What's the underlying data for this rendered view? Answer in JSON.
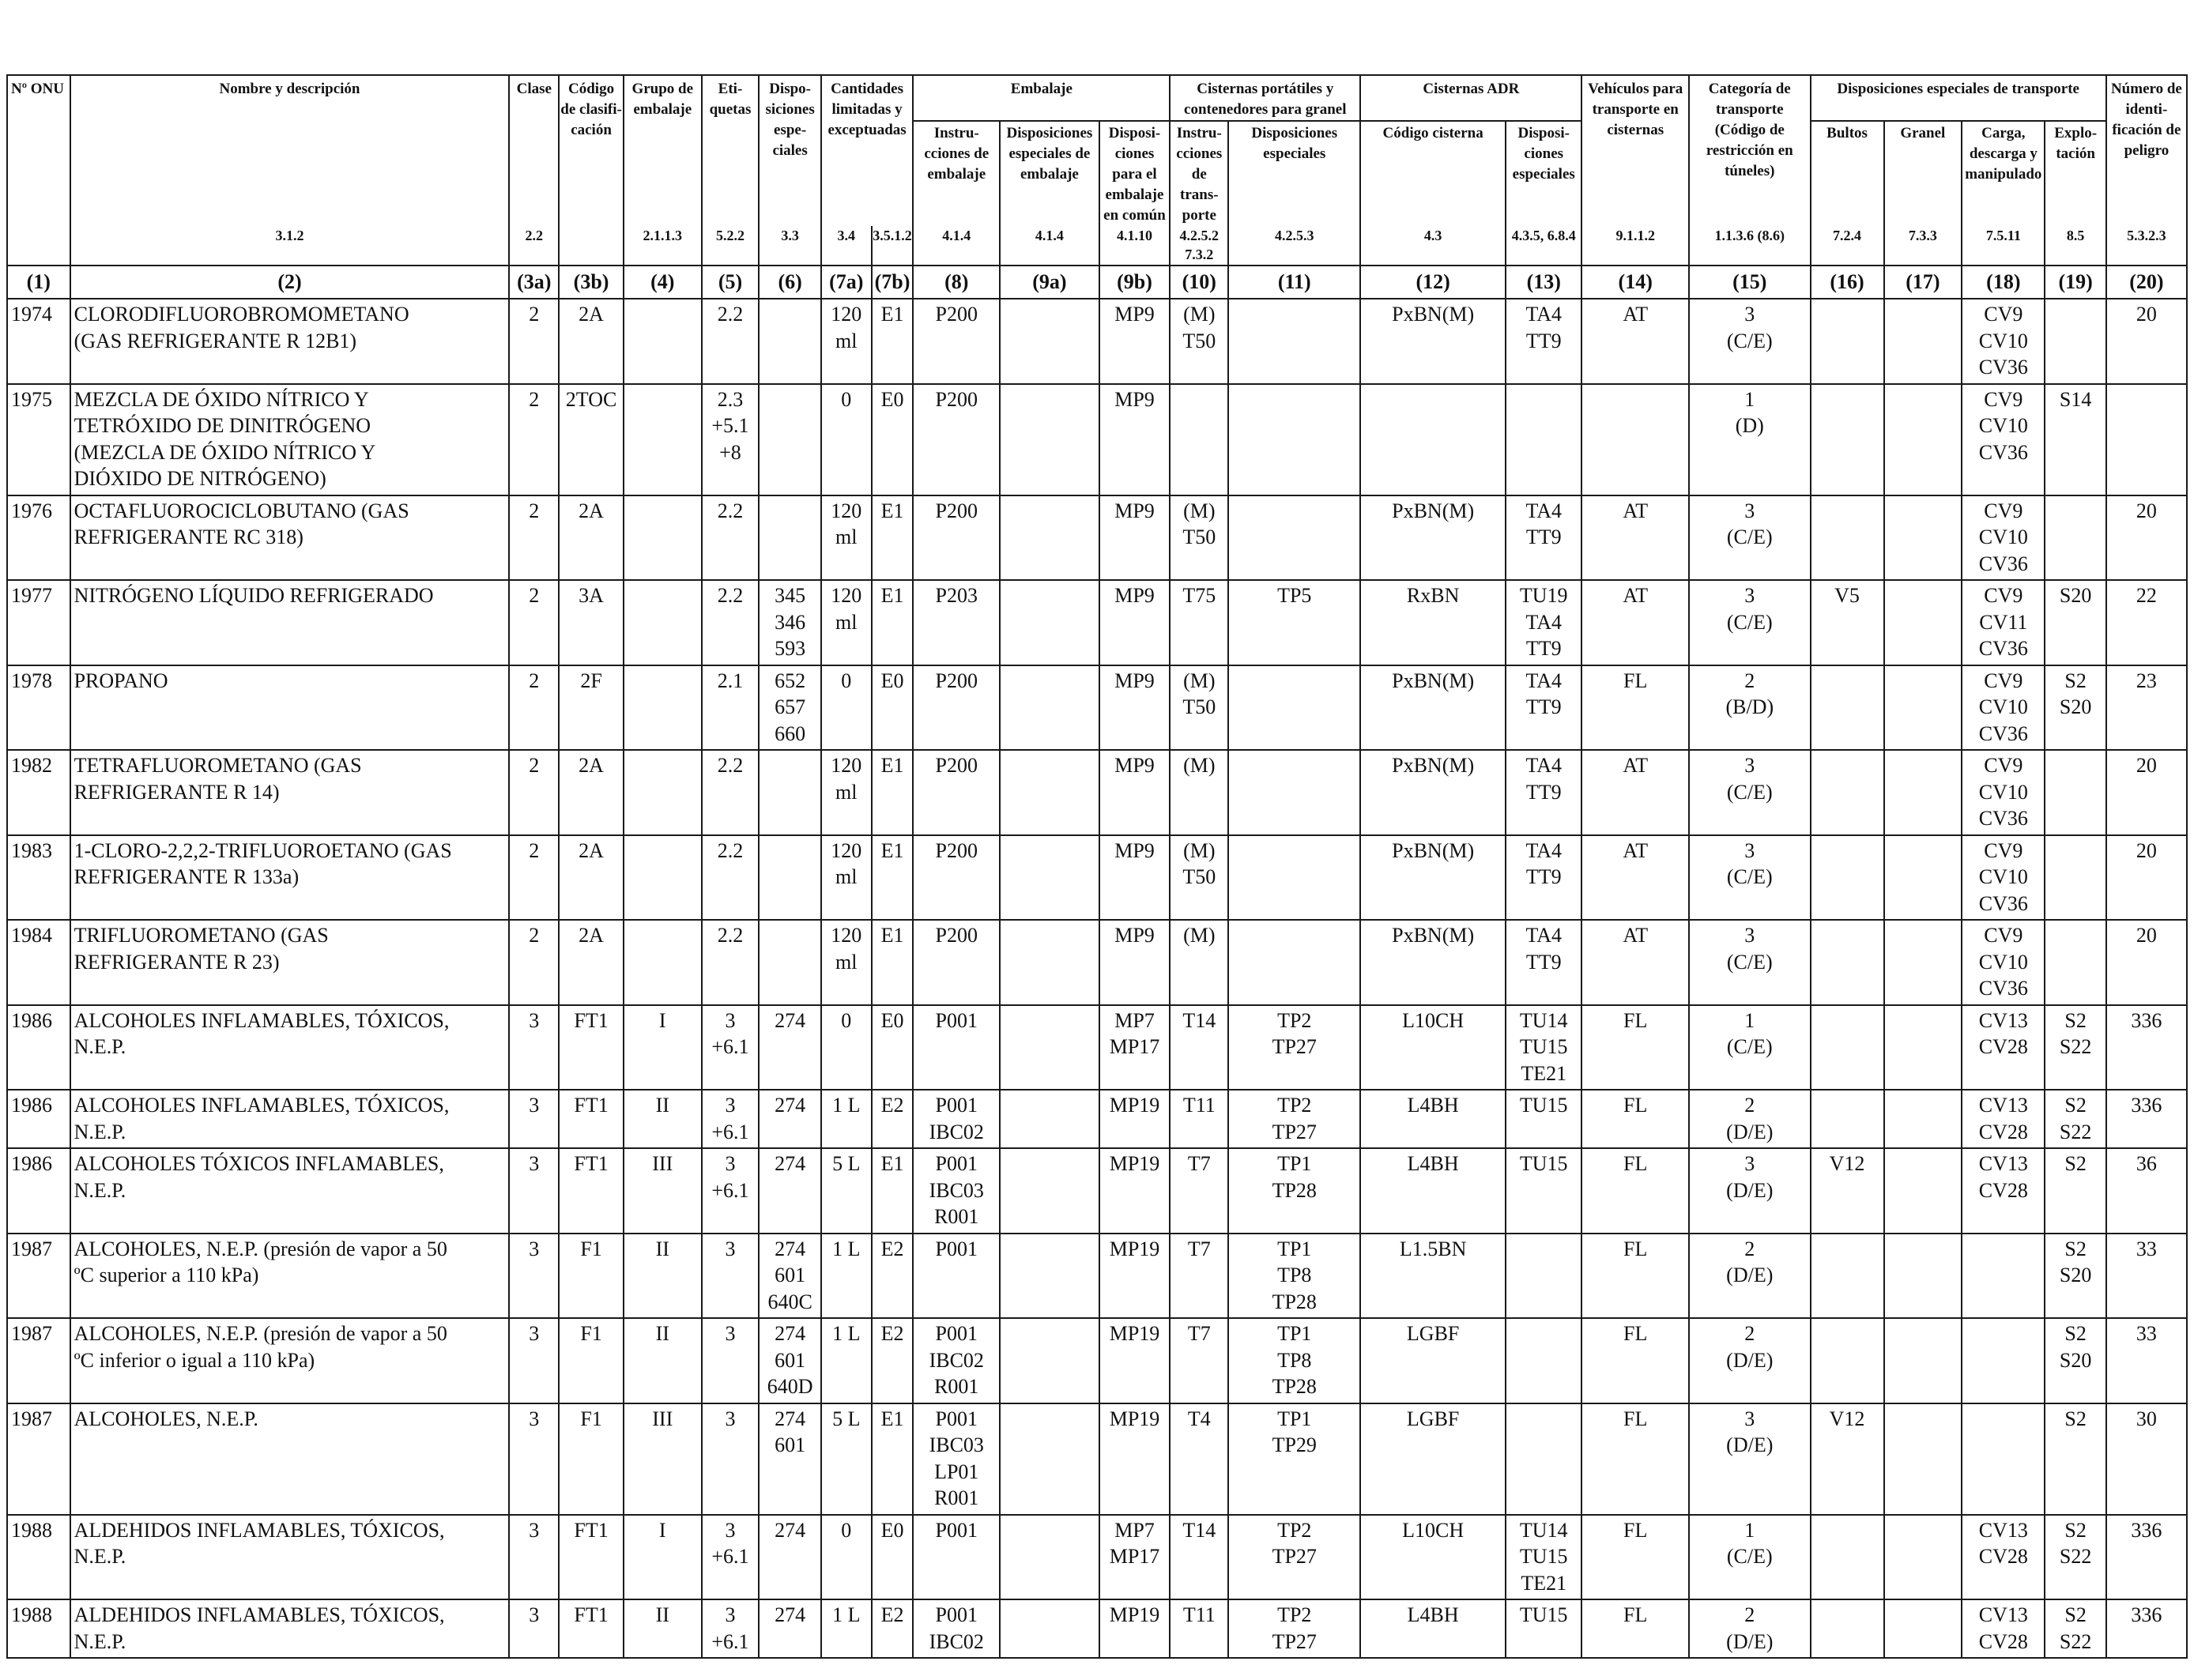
{
  "header": {
    "onu": "Nº ONU",
    "name": "Nombre y descripción",
    "clase": "Clase",
    "codigo": "Código de clasifi- cación",
    "grupo": "Grupo de embalaje",
    "etiquetas": "Eti- quetas",
    "disposiciones": "Dispo- siciones espe- ciales",
    "cantidades": "Cantidades limitadas y exceptuadas",
    "embalaje": "Embalaje",
    "emb_instr": "Instru- cciones de embalaje",
    "emb_disp": "Disposiciones especiales de embalaje",
    "emb_comun": "Disposi- ciones para el embalaje en común",
    "cisternas_port": "Cisternas portátiles y contenedores para granel",
    "cp_instr": "Instru- cciones de trans- porte",
    "cp_disp": "Disposiciones especiales",
    "cisternas_adr": "Cisternas ADR",
    "adr_codigo": "Código cisterna",
    "adr_disp": "Disposi- ciones especiales",
    "vehiculos": "Vehículos para transporte en cisternas",
    "categoria": "Categoría de transporte (Código de restricción en túneles)",
    "disp_transporte": "Disposiciones especiales de transporte",
    "bultos": "Bultos",
    "granel": "Granel",
    "carga": "Carga, descarga y manipulado",
    "explotacion": "Explo- tación",
    "numero_peligro": "Número de identi- ficación de peligro"
  },
  "refs": [
    "3.1.2",
    "2.2",
    "",
    "2.1.1.3",
    "5.2.2",
    "3.3",
    "3.4",
    "3.5.1.2",
    "4.1.4",
    "4.1.4",
    "4.1.10",
    "4.2.5.2 7.3.2",
    "4.2.5.3",
    "4.3",
    "4.3.5, 6.8.4",
    "9.1.1.2",
    "1.1.3.6 (8.6)",
    "7.2.4",
    "7.3.3",
    "7.5.11",
    "8.5",
    "5.3.2.3"
  ],
  "colnums": [
    "(1)",
    "(2)",
    "(3a)",
    "(3b)",
    "(4)",
    "(5)",
    "(6)",
    "(7a)",
    "(7b)",
    "(8)",
    "(9a)",
    "(9b)",
    "(10)",
    "(11)",
    "(12)",
    "(13)",
    "(14)",
    "(15)",
    "(16)",
    "(17)",
    "(18)",
    "(19)",
    "(20)"
  ],
  "rows": [
    {
      "h": 104,
      "name": [
        "CLORODIFLUOROBROMOMETANO",
        "(GAS REFRIGERANTE R 12B1)"
      ],
      "c": [
        "1974",
        "",
        "2",
        "2A",
        "",
        "2.2",
        "",
        "120 ml",
        "E1",
        "P200",
        "",
        "MP9",
        "(M) T50",
        "",
        "PxBN(M)",
        "TA4 TT9",
        "AT",
        "3 (C/E)",
        "",
        "",
        "CV9 CV10 CV36",
        "",
        "20"
      ]
    },
    {
      "h": 138,
      "name": [
        "MEZCLA DE ÓXIDO NÍTRICO Y",
        "TETRÓXIDO DE DINITRÓGENO",
        "(MEZCLA DE ÓXIDO NÍTRICO Y",
        "DIÓXIDO DE NITRÓGENO)"
      ],
      "c": [
        "1975",
        "",
        "2",
        "2TOC",
        "",
        "2.3 +5.1 +8",
        "",
        "0",
        "E0",
        "P200",
        "",
        "MP9",
        "",
        "",
        "",
        "",
        "",
        "1 (D)",
        "",
        "",
        "CV9 CV10 CV36",
        "S14",
        ""
      ]
    },
    {
      "h": 104,
      "name": [
        "OCTAFLUOROCICLOBUTANO (GAS",
        "REFRIGERANTE RC 318)"
      ],
      "c": [
        "1976",
        "",
        "2",
        "2A",
        "",
        "2.2",
        "",
        "120 ml",
        "E1",
        "P200",
        "",
        "MP9",
        "(M) T50",
        "",
        "PxBN(M)",
        "TA4 TT9",
        "AT",
        "3 (C/E)",
        "",
        "",
        "CV9 CV10 CV36",
        "",
        "20"
      ]
    },
    {
      "h": 104,
      "name": [
        "NITRÓGENO LÍQUIDO REFRIGERADO"
      ],
      "c": [
        "1977",
        "",
        "2",
        "3A",
        "",
        "2.2",
        "345 346 593",
        "120 ml",
        "E1",
        "P203",
        "",
        "MP9",
        "T75",
        "TP5",
        "RxBN",
        "TU19 TA4 TT9",
        "AT",
        "3 (C/E)",
        "V5",
        "",
        "CV9 CV11 CV36",
        "S20",
        "22"
      ]
    },
    {
      "h": 104,
      "name": [
        "PROPANO"
      ],
      "c": [
        "1978",
        "",
        "2",
        "2F",
        "",
        "2.1",
        "652 657 660",
        "0",
        "E0",
        "P200",
        "",
        "MP9",
        "(M) T50",
        "",
        "PxBN(M)",
        "TA4 TT9",
        "FL",
        "2 (B/D)",
        "",
        "",
        "CV9 CV10 CV36",
        "S2 S20",
        "23"
      ]
    },
    {
      "h": 104,
      "name": [
        "TETRAFLUOROMETANO (GAS",
        "REFRIGERANTE R 14)"
      ],
      "c": [
        "1982",
        "",
        "2",
        "2A",
        "",
        "2.2",
        "",
        "120 ml",
        "E1",
        "P200",
        "",
        "MP9",
        "(M)",
        "",
        "PxBN(M)",
        "TA4 TT9",
        "AT",
        "3 (C/E)",
        "",
        "",
        "CV9 CV10 CV36",
        "",
        "20"
      ]
    },
    {
      "h": 104,
      "name": [
        "1-CLORO-2,2,2-TRIFLUOROETANO (GAS",
        "REFRIGERANTE R 133a)"
      ],
      "c": [
        "1983",
        "",
        "2",
        "2A",
        "",
        "2.2",
        "",
        "120 ml",
        "E1",
        "P200",
        "",
        "MP9",
        "(M) T50",
        "",
        "PxBN(M)",
        "TA4 TT9",
        "AT",
        "3 (C/E)",
        "",
        "",
        "CV9 CV10 CV36",
        "",
        "20"
      ]
    },
    {
      "h": 104,
      "name": [
        "TRIFLUOROMETANO (GAS",
        "REFRIGERANTE R 23)"
      ],
      "c": [
        "1984",
        "",
        "2",
        "2A",
        "",
        "2.2",
        "",
        "120 ml",
        "E1",
        "P200",
        "",
        "MP9",
        "(M)",
        "",
        "PxBN(M)",
        "TA4 TT9",
        "AT",
        "3 (C/E)",
        "",
        "",
        "CV9 CV10 CV36",
        "",
        "20"
      ]
    },
    {
      "h": 104,
      "name": [
        "ALCOHOLES  INFLAMABLES, TÓXICOS,",
        "N.E.P."
      ],
      "c": [
        "1986",
        "",
        "3",
        "FT1",
        "I",
        "3 +6.1",
        "274",
        "0",
        "E0",
        "P001",
        "",
        "MP7 MP17",
        "T14",
        "TP2 TP27",
        "L10CH",
        "TU14 TU15 TE21",
        "FL",
        "1 (C/E)",
        "",
        "",
        "CV13 CV28",
        "S2 S22",
        "336"
      ]
    },
    {
      "h": 70,
      "name": [
        "ALCOHOLES INFLAMABLES, TÓXICOS,",
        "N.E.P."
      ],
      "c": [
        "1986",
        "",
        "3",
        "FT1",
        "II",
        "3 +6.1",
        "274",
        "1 L",
        "E2",
        "P001 IBC02",
        "",
        "MP19",
        "T11",
        "TP2 TP27",
        "L4BH",
        "TU15",
        "FL",
        "2 (D/E)",
        "",
        "",
        "CV13 CV28",
        "S2 S22",
        "336"
      ]
    },
    {
      "h": 104,
      "name": [
        "ALCOHOLES TÓXICOS INFLAMABLES,",
        "N.E.P."
      ],
      "c": [
        "1986",
        "",
        "3",
        "FT1",
        "III",
        "3 +6.1",
        "274",
        "5 L",
        "E1",
        "P001 IBC03 R001",
        "",
        "MP19",
        "T7",
        "TP1 TP28",
        "L4BH",
        "TU15",
        "FL",
        "3 (D/E)",
        "V12",
        "",
        "CV13 CV28",
        "S2",
        "36"
      ]
    },
    {
      "h": 104,
      "name": [
        "ALCOHOLES, N.E.P. (presión de vapor a 50",
        "ºC superior a 110 kPa)"
      ],
      "c": [
        "1987",
        "",
        "3",
        "F1",
        "II",
        "3",
        "274 601 640C",
        "1 L",
        "E2",
        "P001",
        "",
        "MP19",
        "T7",
        "TP1 TP8 TP28",
        "L1.5BN",
        "",
        "FL",
        "2 (D/E)",
        "",
        "",
        "",
        "S2 S20",
        "33"
      ]
    },
    {
      "h": 104,
      "name": [
        "ALCOHOLES, N.E.P. (presión de vapor a 50",
        "ºC inferior o igual a 110 kPa)"
      ],
      "c": [
        "1987",
        "",
        "3",
        "F1",
        "II",
        "3",
        "274 601 640D",
        "1 L",
        "E2",
        "P001 IBC02 R001",
        "",
        "MP19",
        "T7",
        "TP1 TP8 TP28",
        "LGBF",
        "",
        "FL",
        "2 (D/E)",
        "",
        "",
        "",
        "S2 S20",
        "33"
      ]
    },
    {
      "h": 138,
      "name": [
        "ALCOHOLES, N.E.P."
      ],
      "c": [
        "1987",
        "",
        "3",
        "F1",
        "III",
        "3",
        "274 601",
        "5 L",
        "E1",
        "P001 IBC03 LP01 R001",
        "",
        "MP19",
        "T4",
        "TP1 TP29",
        "LGBF",
        "",
        "FL",
        "3 (D/E)",
        "V12",
        "",
        "",
        "S2",
        "30"
      ]
    },
    {
      "h": 104,
      "name": [
        "ALDEHIDOS INFLAMABLES, TÓXICOS,",
        "N.E.P."
      ],
      "c": [
        "1988",
        "",
        "3",
        "FT1",
        "I",
        "3 +6.1",
        "274",
        "0",
        "E0",
        "P001",
        "",
        "MP7 MP17",
        "T14",
        "TP2 TP27",
        "L10CH",
        "TU14 TU15 TE21",
        "FL",
        "1 (C/E)",
        "",
        "",
        "CV13 CV28",
        "S2 S22",
        "336"
      ]
    },
    {
      "h": 70,
      "name": [
        "ALDEHIDOS INFLAMABLES, TÓXICOS,",
        "N.E.P."
      ],
      "c": [
        "1988",
        "",
        "3",
        "FT1",
        "II",
        "3 +6.1",
        "274",
        "1 L",
        "E2",
        "P001 IBC02",
        "",
        "MP19",
        "T11",
        "TP2 TP27",
        "L4BH",
        "TU15",
        "FL",
        "2 (D/E)",
        "",
        "",
        "CV13 CV28",
        "S2 S22",
        "336"
      ]
    }
  ]
}
